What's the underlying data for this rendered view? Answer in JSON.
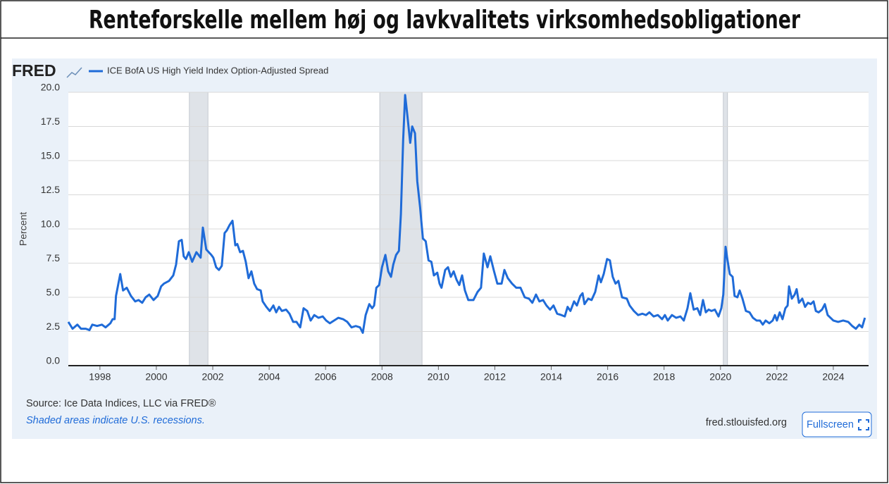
{
  "chart_data": {
    "type": "line",
    "title": "Renteforskelle mellem høj og lavkvalitets virksomhedsobligationer",
    "logo": "FRED",
    "y_label": "Percent",
    "source": "Source: Ice Data Indices, LLC via FRED®",
    "note": "Shaded areas indicate U.S. recessions.",
    "site": "fred.stlouisfed.org",
    "button": "Fullscreen",
    "grid": true,
    "xlim": [
      1996.88,
      2025.25
    ],
    "xticks": [
      1998,
      2000,
      2002,
      2004,
      2006,
      2008,
      2010,
      2012,
      2014,
      2016,
      2018,
      2020,
      2022,
      2024
    ],
    "ylim": [
      0,
      20
    ],
    "yticks": [
      {
        "value": 0,
        "label": "0.0"
      },
      2.5,
      {
        "value": 5,
        "label": "5.0"
      },
      7.5,
      {
        "value": 10,
        "label": "10.0"
      },
      12.5,
      {
        "value": 15,
        "label": "15.0"
      },
      17.5,
      {
        "value": 20,
        "label": "20.0"
      }
    ],
    "recessions": [
      [
        2001.17,
        2001.83
      ],
      [
        2007.92,
        2009.42
      ],
      [
        2020.1,
        2020.25
      ]
    ],
    "x": [
      1996.88,
      1997.03,
      1997.2,
      1997.33,
      1997.5,
      1997.63,
      1997.73,
      1997.9,
      1998.07,
      1998.2,
      1998.37,
      1998.45,
      1998.52,
      1998.57,
      1998.72,
      1998.82,
      1998.95,
      1999.1,
      1999.25,
      1999.37,
      1999.5,
      1999.62,
      1999.75,
      1999.9,
      2000.05,
      2000.17,
      2000.27,
      2000.45,
      2000.6,
      2000.7,
      2000.8,
      2000.9,
      2000.97,
      2001.05,
      2001.15,
      2001.27,
      2001.42,
      2001.57,
      2001.65,
      2001.77,
      2001.95,
      2002.02,
      2002.12,
      2002.22,
      2002.32,
      2002.42,
      2002.5,
      2002.6,
      2002.7,
      2002.8,
      2002.87,
      2002.97,
      2003.07,
      2003.17,
      2003.27,
      2003.37,
      2003.47,
      2003.57,
      2003.7,
      2003.77,
      2003.9,
      2004.02,
      2004.15,
      2004.25,
      2004.35,
      2004.45,
      2004.6,
      2004.72,
      2004.85,
      2004.97,
      2005.1,
      2005.22,
      2005.35,
      2005.47,
      2005.6,
      2005.75,
      2005.9,
      2006.02,
      2006.15,
      2006.3,
      2006.45,
      2006.62,
      2006.77,
      2006.92,
      2007.07,
      2007.22,
      2007.32,
      2007.42,
      2007.55,
      2007.65,
      2007.72,
      2007.8,
      2007.9,
      2008.0,
      2008.12,
      2008.22,
      2008.32,
      2008.4,
      2008.5,
      2008.6,
      2008.67,
      2008.75,
      2008.82,
      2008.9,
      2009.0,
      2009.07,
      2009.17,
      2009.25,
      2009.35,
      2009.45,
      2009.55,
      2009.65,
      2009.75,
      2009.84,
      2009.96,
      2010.04,
      2010.11,
      2010.24,
      2010.34,
      2010.44,
      2010.54,
      2010.64,
      2010.74,
      2010.84,
      2010.94,
      2011.06,
      2011.24,
      2011.39,
      2011.51,
      2011.61,
      2011.74,
      2011.84,
      2011.96,
      2012.09,
      2012.24,
      2012.34,
      2012.46,
      2012.61,
      2012.76,
      2012.91,
      2013.06,
      2013.21,
      2013.33,
      2013.46,
      2013.58,
      2013.71,
      2013.83,
      2013.96,
      2014.08,
      2014.21,
      2014.36,
      2014.48,
      2014.58,
      2014.68,
      2014.81,
      2014.91,
      2015.03,
      2015.11,
      2015.18,
      2015.31,
      2015.43,
      2015.56,
      2015.68,
      2015.76,
      2015.86,
      2015.98,
      2016.08,
      2016.18,
      2016.28,
      2016.38,
      2016.51,
      2016.68,
      2016.78,
      2016.93,
      2017.08,
      2017.23,
      2017.36,
      2017.48,
      2017.63,
      2017.78,
      2017.93,
      2018.03,
      2018.13,
      2018.28,
      2018.43,
      2018.58,
      2018.7,
      2018.83,
      2018.93,
      2019.05,
      2019.18,
      2019.28,
      2019.38,
      2019.48,
      2019.58,
      2019.68,
      2019.8,
      2019.93,
      2020.03,
      2020.1,
      2020.18,
      2020.25,
      2020.33,
      2020.43,
      2020.5,
      2020.6,
      2020.68,
      2020.78,
      2020.9,
      2021.03,
      2021.15,
      2021.28,
      2021.4,
      2021.5,
      2021.6,
      2021.73,
      2021.85,
      2021.93,
      2022.0,
      2022.1,
      2022.2,
      2022.3,
      2022.38,
      2022.43,
      2022.53,
      2022.63,
      2022.7,
      2022.78,
      2022.9,
      2023.0,
      2023.1,
      2023.2,
      2023.3,
      2023.38,
      2023.48,
      2023.6,
      2023.7,
      2023.8,
      2023.9,
      2024.0,
      2024.17,
      2024.35,
      2024.53,
      2024.67,
      2024.8,
      2024.92,
      2025.02,
      2025.12
    ],
    "series": [
      {
        "name": "ICE BofA US High Yield Index Option-Adjusted Spread",
        "color": "#1f6bd8",
        "values": [
          3.2,
          2.7,
          3.0,
          2.7,
          2.7,
          2.6,
          3.0,
          2.9,
          3.0,
          2.8,
          3.1,
          3.4,
          3.4,
          5.1,
          6.7,
          5.5,
          5.7,
          5.1,
          4.7,
          4.8,
          4.6,
          5.0,
          5.2,
          4.8,
          5.1,
          5.8,
          6.0,
          6.2,
          6.6,
          7.4,
          9.1,
          9.2,
          8.0,
          7.8,
          8.3,
          7.6,
          8.3,
          7.9,
          10.1,
          8.5,
          8.1,
          7.9,
          7.2,
          7.0,
          7.3,
          9.7,
          9.9,
          10.3,
          10.6,
          8.8,
          8.9,
          8.3,
          8.4,
          7.6,
          6.4,
          6.9,
          6.0,
          5.6,
          5.5,
          4.7,
          4.3,
          4.0,
          4.4,
          3.9,
          4.3,
          4.0,
          4.1,
          3.8,
          3.2,
          3.2,
          2.8,
          4.2,
          4.0,
          3.3,
          3.7,
          3.5,
          3.6,
          3.3,
          3.1,
          3.3,
          3.5,
          3.4,
          3.2,
          2.8,
          2.9,
          2.8,
          2.4,
          3.7,
          4.5,
          4.2,
          4.4,
          5.7,
          5.9,
          7.2,
          8.1,
          6.9,
          6.5,
          7.4,
          8.1,
          8.4,
          11.1,
          16.5,
          19.8,
          18.3,
          16.3,
          17.5,
          17.0,
          13.5,
          11.6,
          9.3,
          9.1,
          7.7,
          7.6,
          6.6,
          6.8,
          6.0,
          5.7,
          7.0,
          7.2,
          6.5,
          6.9,
          6.3,
          5.9,
          6.6,
          5.5,
          4.8,
          4.8,
          5.4,
          5.7,
          8.2,
          7.2,
          8.0,
          7.0,
          6.0,
          6.0,
          7.0,
          6.4,
          6.0,
          5.7,
          5.7,
          5.0,
          4.9,
          4.6,
          5.2,
          4.7,
          4.8,
          4.4,
          4.1,
          4.4,
          3.8,
          3.7,
          3.6,
          4.3,
          4.0,
          4.7,
          4.4,
          5.1,
          5.3,
          4.5,
          4.9,
          4.8,
          5.4,
          6.6,
          6.1,
          6.7,
          7.8,
          7.7,
          6.5,
          6.0,
          6.2,
          5.0,
          4.9,
          4.4,
          4.0,
          3.7,
          3.8,
          3.7,
          3.9,
          3.6,
          3.7,
          3.4,
          3.7,
          3.3,
          3.7,
          3.5,
          3.6,
          3.3,
          4.2,
          5.3,
          4.1,
          4.2,
          3.7,
          4.8,
          3.9,
          4.1,
          4.0,
          4.1,
          3.6,
          4.2,
          5.2,
          8.7,
          7.7,
          6.7,
          6.5,
          5.1,
          5.0,
          5.5,
          4.9,
          4.0,
          3.9,
          3.5,
          3.3,
          3.3,
          3.0,
          3.3,
          3.1,
          3.3,
          3.7,
          3.3,
          3.9,
          3.4,
          4.2,
          4.4,
          5.8,
          4.9,
          5.2,
          5.6,
          4.6,
          4.9,
          4.3,
          4.6,
          4.5,
          4.7,
          4.0,
          3.9,
          4.1,
          4.5,
          3.7,
          3.5,
          3.3,
          3.2,
          3.3,
          3.2,
          2.9,
          2.7,
          3.0,
          2.8,
          3.5
        ]
      }
    ]
  }
}
